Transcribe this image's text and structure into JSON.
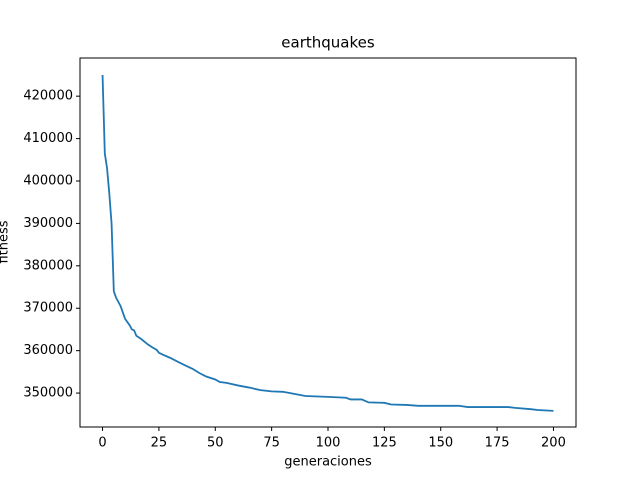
{
  "chart_data": {
    "type": "line",
    "title": "earthquakes",
    "x_label": "generaciones",
    "y_label": "fitness",
    "series": [
      {
        "color": "#1f77b4",
        "x": [
          0,
          1,
          2,
          3,
          4,
          5,
          6,
          7,
          8,
          9,
          10,
          12,
          13,
          14,
          15,
          17,
          20,
          22,
          24,
          25,
          27,
          30,
          33,
          36,
          40,
          43,
          46,
          50,
          52,
          55,
          60,
          65,
          70,
          75,
          80,
          85,
          90,
          100,
          108,
          110,
          115,
          118,
          125,
          128,
          135,
          140,
          150,
          158,
          162,
          180,
          183,
          190,
          193,
          200
        ],
        "values": [
          425000,
          406500,
          403000,
          397000,
          390000,
          374000,
          372500,
          371500,
          370500,
          369000,
          367500,
          366000,
          365000,
          364800,
          363500,
          362800,
          361500,
          360800,
          360200,
          359500,
          359000,
          358300,
          357500,
          356700,
          355700,
          354700,
          353900,
          353200,
          352600,
          352400,
          351800,
          351300,
          350700,
          350400,
          350300,
          349800,
          349300,
          349100,
          348900,
          348500,
          348500,
          347800,
          347700,
          347300,
          347200,
          347000,
          347000,
          347000,
          346700,
          346700,
          346500,
          346200,
          346000,
          345800
        ]
      }
    ],
    "xlim": [
      -10,
      210
    ],
    "ylim": [
      342000,
      429000
    ],
    "xticks": [
      0,
      25,
      50,
      75,
      100,
      125,
      150,
      175,
      200
    ],
    "yticks": [
      350000,
      360000,
      370000,
      380000,
      390000,
      400000,
      410000,
      420000
    ]
  }
}
